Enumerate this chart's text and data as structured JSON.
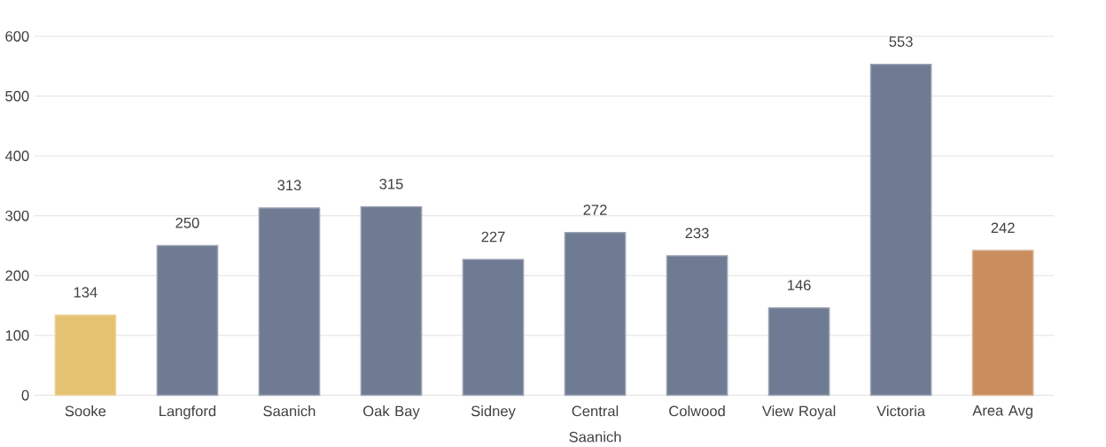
{
  "chart_data": {
    "type": "bar",
    "categories": [
      "Sooke",
      "Langford",
      "Saanich",
      "Oak Bay",
      "Sidney",
      "Central Saanich",
      "Colwood",
      "View Royal",
      "Victoria",
      "Area Avg"
    ],
    "values": [
      134,
      250,
      313,
      315,
      227,
      272,
      233,
      146,
      553,
      242
    ],
    "colors": [
      "#e5c172",
      "#6f7b93",
      "#6f7b93",
      "#6f7b93",
      "#6f7b93",
      "#6f7b93",
      "#6f7b93",
      "#6f7b93",
      "#6f7b93",
      "#c98d5e"
    ],
    "ylim": [
      0,
      600
    ],
    "yticks": [
      0,
      100,
      200,
      300,
      400,
      500,
      600
    ],
    "grid": "y",
    "data_labels": true
  }
}
